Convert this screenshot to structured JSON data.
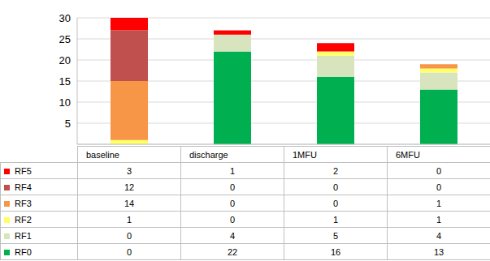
{
  "chart_data": {
    "type": "bar",
    "stacked": true,
    "grid": true,
    "categories": [
      "baseline",
      "discharge",
      "1MFU",
      "6MFU"
    ],
    "ylim": [
      0,
      30
    ],
    "yticks": [
      0,
      5,
      10,
      15,
      20,
      25,
      30
    ],
    "series": [
      {
        "name": "RF0",
        "color": "#00b050",
        "values": [
          0,
          22,
          16,
          13
        ]
      },
      {
        "name": "RF1",
        "color": "#d7e4bd",
        "values": [
          0,
          4,
          5,
          4
        ]
      },
      {
        "name": "RF2",
        "color": "#ffff66",
        "values": [
          1,
          0,
          1,
          1
        ]
      },
      {
        "name": "RF3",
        "color": "#f79646",
        "values": [
          14,
          0,
          0,
          1
        ]
      },
      {
        "name": "RF4",
        "color": "#c0504d",
        "values": [
          12,
          0,
          0,
          0
        ]
      },
      {
        "name": "RF5",
        "color": "#ff0000",
        "values": [
          3,
          1,
          2,
          0
        ]
      }
    ]
  }
}
